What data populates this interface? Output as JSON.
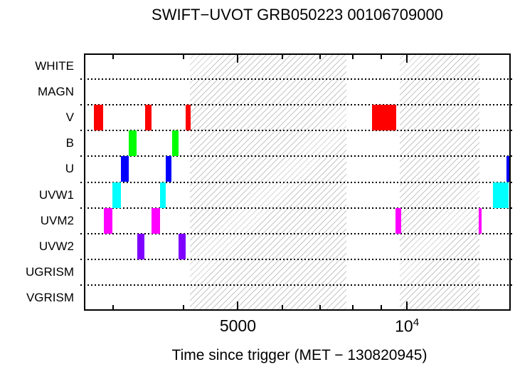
{
  "chart_data": {
    "type": "bar",
    "subtype": "exposure-timeline-gantt",
    "title": "SWIFT−UVOT GRB050223 00106709000",
    "xlabel": "Time since trigger (MET − 130820945)",
    "x_axis": {
      "scale": "log",
      "min": 2660,
      "max": 15300,
      "major_ticks": [
        {
          "value": 5000,
          "label": "5000"
        },
        {
          "value": 10000,
          "label": "10",
          "exponent": "4"
        }
      ],
      "minor_ticks": [
        3000,
        4000,
        6000,
        7000,
        8000,
        9000
      ]
    },
    "rows": [
      {
        "filter": "WHITE",
        "intervals": []
      },
      {
        "filter": "MAGN",
        "intervals": []
      },
      {
        "filter": "V",
        "color": "#ff0000",
        "intervals": [
          [
            2770,
            2880
          ],
          [
            3420,
            3510
          ],
          [
            4040,
            4120
          ],
          [
            8670,
            9570
          ]
        ]
      },
      {
        "filter": "B",
        "color": "#00ff00",
        "intervals": [
          [
            3200,
            3300
          ],
          [
            3820,
            3920
          ]
        ]
      },
      {
        "filter": "U",
        "color": "#0000ff",
        "intervals": [
          [
            3100,
            3200
          ],
          [
            3720,
            3810
          ],
          [
            15020,
            15300
          ]
        ]
      },
      {
        "filter": "UVW1",
        "color": "#00ffff",
        "intervals": [
          [
            2990,
            3100
          ],
          [
            3630,
            3720
          ],
          [
            14220,
            15160
          ]
        ]
      },
      {
        "filter": "UVM2",
        "color": "#ff00ff",
        "intervals": [
          [
            2890,
            2990
          ],
          [
            3510,
            3630
          ],
          [
            9550,
            9760
          ],
          [
            13430,
            13590
          ]
        ]
      },
      {
        "filter": "UVW2",
        "color": "#7f00ff",
        "intervals": [
          [
            3310,
            3410
          ],
          [
            3920,
            4040
          ]
        ]
      },
      {
        "filter": "UGRISM",
        "intervals": []
      },
      {
        "filter": "VGRISM",
        "intervals": []
      }
    ],
    "shaded_gaps": [
      [
        4110,
        7800
      ],
      [
        9710,
        13460
      ]
    ],
    "grid": "dotted-row-separators",
    "legend": "none",
    "colors": {
      "frame": "#000000",
      "hatch": "#c6c6c6",
      "background": "#ffffff"
    }
  }
}
